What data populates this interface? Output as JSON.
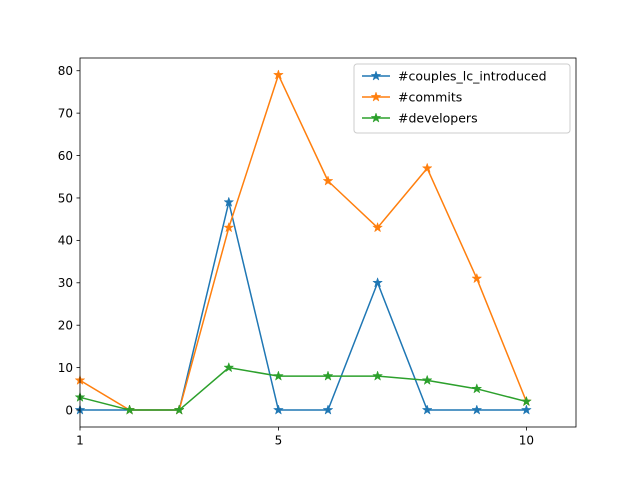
{
  "chart_data": {
    "type": "line",
    "title": "",
    "xlabel": "",
    "ylabel": "",
    "x": [
      1,
      2,
      3,
      4,
      5,
      6,
      7,
      8,
      9,
      10
    ],
    "xlim": [
      1,
      11
    ],
    "ylim": [
      -4,
      83
    ],
    "xticks": [
      1,
      5,
      10
    ],
    "yticks": [
      0,
      10,
      20,
      30,
      40,
      50,
      60,
      70,
      80
    ],
    "grid": false,
    "legend_position": "top-right",
    "marker": "star",
    "series": [
      {
        "name": "#couples_lc_introduced",
        "color": "#1f77b4",
        "values": [
          0,
          0,
          0,
          49,
          0,
          0,
          30,
          0,
          0,
          0
        ]
      },
      {
        "name": "#commits",
        "color": "#ff7f0e",
        "values": [
          7,
          0,
          0,
          43,
          79,
          54,
          43,
          57,
          31,
          2
        ]
      },
      {
        "name": "#developers",
        "color": "#2ca02c",
        "values": [
          3,
          0,
          0,
          10,
          8,
          8,
          8,
          7,
          5,
          2
        ]
      }
    ]
  }
}
